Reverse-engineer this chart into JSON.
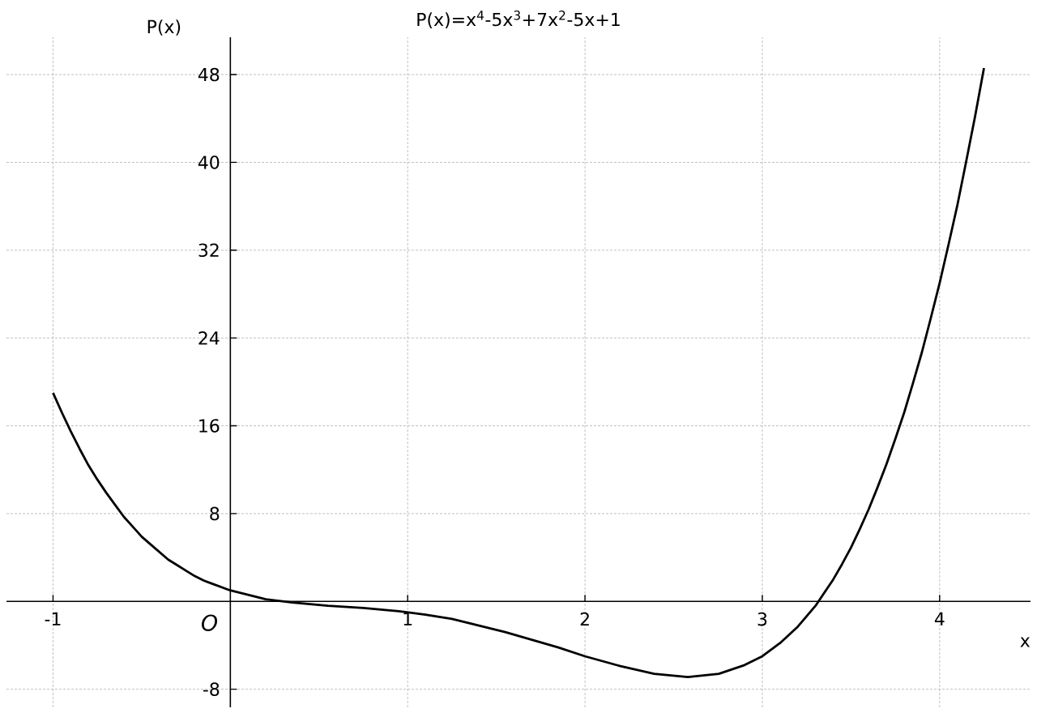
{
  "chart_data": {
    "type": "line",
    "title": "P(x)=x$^{4}$-5x$^{3}$+7x$^{2}$-5x+1",
    "xlabel": "x",
    "ylabel": "P(x)",
    "annotations": [
      "O"
    ],
    "x": [
      -1,
      -0.95,
      -0.9,
      -0.85,
      -0.8,
      -0.75,
      -0.7,
      -0.65,
      -0.6,
      -0.55,
      -0.5,
      -0.45,
      -0.4,
      -0.35,
      -0.3,
      -0.25,
      -0.2,
      -0.15,
      -0.1,
      0,
      0.1,
      0.2,
      0.35,
      0.55,
      0.75,
      0.95,
      1.1,
      1.25,
      1.4,
      1.55,
      1.7,
      1.85,
      2.0,
      2.2,
      2.39,
      2.58,
      2.755,
      2.9,
      3.0,
      3.1,
      3.2,
      3.3,
      3.35,
      3.4,
      3.45,
      3.5,
      3.55,
      3.6,
      3.65,
      3.7,
      3.75,
      3.8,
      3.85,
      3.9,
      3.95,
      4.0,
      4.05,
      4.1,
      4.15,
      4.2,
      4.25
    ],
    "series": [
      {
        "color": "#000000",
        "values": [
          19.0,
          17.2,
          15.5,
          13.9,
          12.4,
          11.1,
          9.9,
          8.8,
          7.7,
          6.8,
          5.9,
          5.2,
          4.5,
          3.8,
          3.3,
          2.8,
          2.3,
          1.9,
          1.6,
          1.0,
          0.6,
          0.2,
          -0.1,
          -0.4,
          -0.6,
          -0.9,
          -1.2,
          -1.6,
          -2.2,
          -2.8,
          -3.5,
          -4.2,
          -5.0,
          -5.9,
          -6.6,
          -6.9,
          -6.6,
          -5.8,
          -5.0,
          -3.8,
          -2.3,
          -0.4,
          0.8,
          2.0,
          3.4,
          4.9,
          6.6,
          8.4,
          10.4,
          12.5,
          14.8,
          17.2,
          19.9,
          22.7,
          25.8,
          29.0,
          32.5,
          36.1,
          40.1,
          44.2,
          48.6
        ]
      }
    ],
    "xlim": [
      -1.2625,
      4.5125
    ],
    "ylim": [
      -9.65,
      51.4
    ],
    "xticks": [
      -1,
      1,
      2,
      3,
      4
    ],
    "yticks": [
      -8,
      8,
      16,
      24,
      32,
      40,
      48
    ],
    "grid": true
  }
}
